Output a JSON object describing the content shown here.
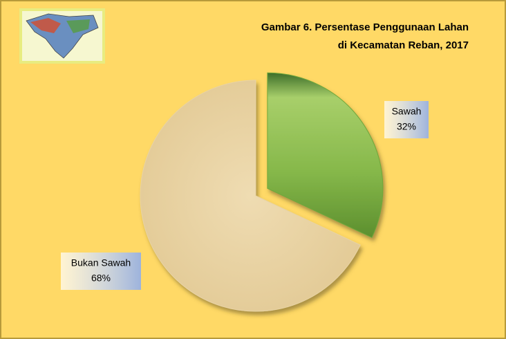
{
  "chart_data": {
    "type": "pie",
    "title": [
      "Gambar 6. Persentase Penggunaan Lahan",
      "di Kecamatan Reban, 2017"
    ],
    "categories": [
      "Sawah",
      "Bukan Sawah"
    ],
    "values": [
      32,
      68
    ],
    "value_labels": [
      "32%",
      "68%"
    ],
    "colors": [
      "#6fa83a",
      "#e8d3a4"
    ]
  }
}
